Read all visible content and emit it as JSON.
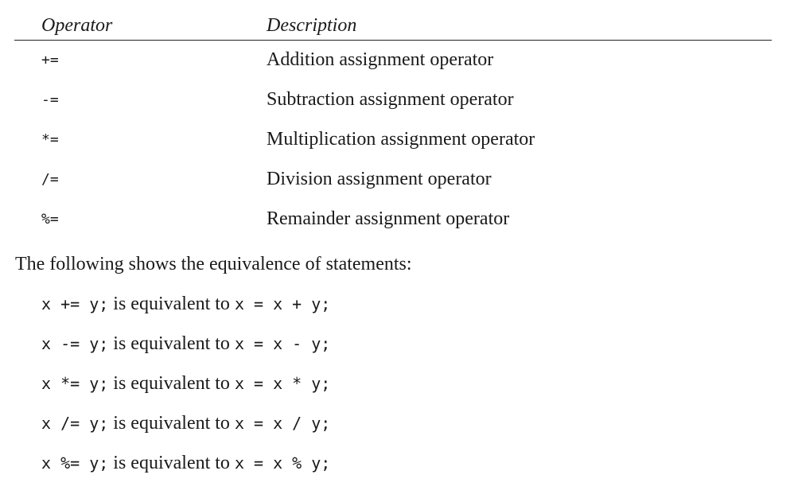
{
  "table": {
    "header": {
      "operator": "Operator",
      "description": "Description"
    },
    "rows": [
      {
        "operator": "+=",
        "description": "Addition assignment operator"
      },
      {
        "operator": "-=",
        "description": "Subtraction assignment operator"
      },
      {
        "operator": "*=",
        "description": "Multiplication assignment operator"
      },
      {
        "operator": "/=",
        "description": "Division assignment operator"
      },
      {
        "operator": "%=",
        "description": "Remainder assignment operator"
      }
    ]
  },
  "intro": "The following shows the equivalence of statements:",
  "equivalences": [
    {
      "lhs": "x += y;",
      "connector": " is equivalent to ",
      "rhs": "x = x + y;"
    },
    {
      "lhs": "x -= y;",
      "connector": " is equivalent to ",
      "rhs": "x = x - y;"
    },
    {
      "lhs": "x *= y;",
      "connector": " is equivalent to ",
      "rhs": "x = x * y;"
    },
    {
      "lhs": "x /= y;",
      "connector": " is equivalent to ",
      "rhs": "x = x / y;"
    },
    {
      "lhs": "x %= y;",
      "connector": " is equivalent to ",
      "rhs": "x = x % y;"
    }
  ]
}
